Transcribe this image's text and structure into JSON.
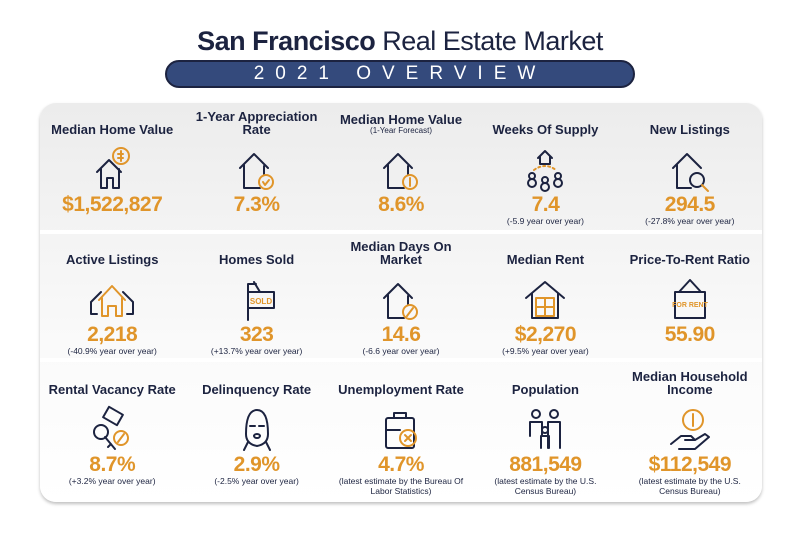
{
  "header": {
    "title_bold": "San Francisco",
    "title_rest": "Real Estate Market",
    "subtitle": "2021 OVERVIEW"
  },
  "colors": {
    "navy": "#1c2340",
    "accent": "#e0952a",
    "pill": "#344a7c"
  },
  "rows": [
    [
      {
        "label": "Median Home Value",
        "icon": "house-dollar-icon",
        "value": "$1,522,827",
        "note": ""
      },
      {
        "label": "1-Year Appreciation Rate",
        "icon": "house-check-icon",
        "value": "7.3%",
        "note": ""
      },
      {
        "label": "Median Home Value",
        "sublabel": "(1-Year Forecast)",
        "icon": "house-coin-icon",
        "value": "8.6%",
        "note": ""
      },
      {
        "label": "Weeks Of Supply",
        "icon": "house-people-icon",
        "value": "7.4",
        "note": "(-5.9 year over year)"
      },
      {
        "label": "New Listings",
        "icon": "house-search-icon",
        "value": "294.5",
        "note": "(-27.8% year over year)"
      }
    ],
    [
      {
        "label": "Active Listings",
        "icon": "houses-icon",
        "value": "2,218",
        "note": "(-40.9% year over year)"
      },
      {
        "label": "Homes Sold",
        "icon": "sold-sign-icon",
        "sign": "SOLD",
        "value": "323",
        "note": "(+13.7% year over year)"
      },
      {
        "label": "Median Days On Market",
        "icon": "house-percent-icon",
        "value": "14.6",
        "note": "(-6.6 year over year)"
      },
      {
        "label": "Median Rent",
        "icon": "house-calculator-icon",
        "value": "$2,270",
        "note": "(+9.5% year over year)"
      },
      {
        "label": "Price-To-Rent Ratio",
        "icon": "for-rent-sign-icon",
        "sign": "FOR RENT",
        "value": "55.90",
        "note": ""
      }
    ],
    [
      {
        "label": "Rental Vacancy Rate",
        "icon": "key-percent-icon",
        "value": "8.7%",
        "note": "(+3.2% year over year)"
      },
      {
        "label": "Delinquency Rate",
        "icon": "balaclava-icon",
        "value": "2.9%",
        "note": "(-2.5% year over year)"
      },
      {
        "label": "Unemployment Rate",
        "icon": "briefcase-x-icon",
        "value": "4.7%",
        "note": "(latest estimate by the Bureau Of Labor Statistics)"
      },
      {
        "label": "Population",
        "icon": "family-icon",
        "value": "881,549",
        "note": "(latest estimate by the U.S. Census Bureau)"
      },
      {
        "label": "Median Household Income",
        "icon": "hand-dollar-icon",
        "value": "$112,549",
        "note": "(latest estimate by the U.S. Census Bureau)"
      }
    ]
  ]
}
